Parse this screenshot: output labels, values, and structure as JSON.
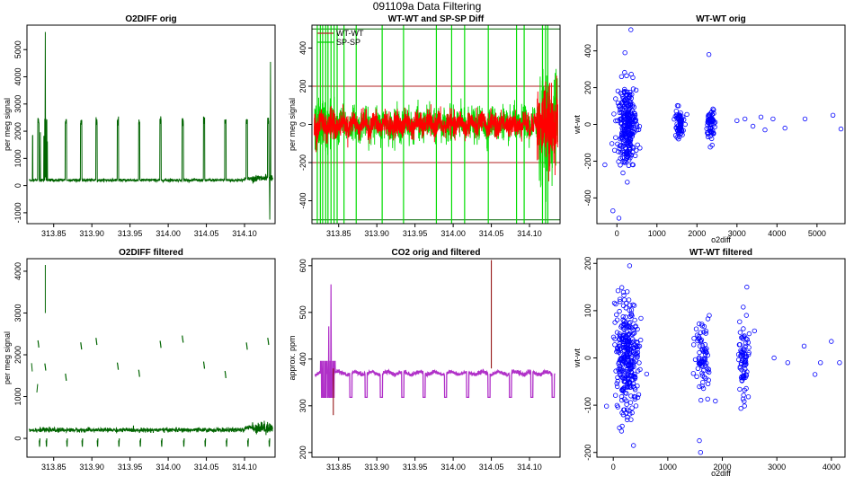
{
  "page_title": "091109a   Data Filtering",
  "chart_data": [
    {
      "id": "p1",
      "type": "line",
      "title": "O2DIFF orig",
      "xlabel": "",
      "ylabel": "per meg signal",
      "xlim": [
        313.815,
        314.14
      ],
      "ylim": [
        -1400,
        5900
      ],
      "xticks": [
        313.85,
        313.9,
        313.95,
        314.0,
        314.05,
        314.1
      ],
      "xtick_labels": [
        "313.85",
        "313.90",
        "313.95",
        "314.00",
        "314.05",
        "314.10"
      ],
      "yticks": [
        -1000,
        0,
        1000,
        2000,
        3000,
        4000,
        5000
      ],
      "ytick_labels": [
        "-1000",
        "0",
        "1000",
        "2000",
        "3000",
        "4000",
        "5000"
      ],
      "series": [
        {
          "name": "O2DIFF",
          "color": "#006400",
          "baseline": 200,
          "pulse_high": 2400,
          "spikes": [
            {
              "x": 313.839,
              "y": 5650
            },
            {
              "x": 314.134,
              "y": 4550
            },
            {
              "x": 314.133,
              "y": -1250
            }
          ]
        }
      ]
    },
    {
      "id": "p2",
      "type": "line",
      "title": "WT-WT and SP-SP Diff",
      "xlabel": "",
      "ylabel": "per meg signal",
      "xlim": [
        313.815,
        314.14
      ],
      "ylim": [
        -520,
        520
      ],
      "xticks": [
        313.85,
        313.9,
        313.95,
        314.0,
        314.05,
        314.1
      ],
      "xtick_labels": [
        "313.85",
        "313.90",
        "313.95",
        "314.00",
        "314.05",
        "314.10"
      ],
      "yticks": [
        -400,
        -200,
        0,
        200,
        400
      ],
      "ytick_labels": [
        "-400",
        "-200",
        "0",
        "200",
        "400"
      ],
      "hlines": [
        {
          "y": 200,
          "color": "#b22222"
        },
        {
          "y": -200,
          "color": "#b22222"
        },
        {
          "y": 500,
          "color": "#006400"
        },
        {
          "y": -500,
          "color": "#006400"
        }
      ],
      "legend": {
        "position": "top-left",
        "entries": [
          {
            "label": "WT-WT",
            "color": "#b22222"
          },
          {
            "label": "SP-SP",
            "color": "#00cc00"
          }
        ]
      },
      "series": [
        {
          "name": "SP-SP",
          "color": "#00dd00",
          "noise": 40
        },
        {
          "name": "WT-WT",
          "color": "#ff0000",
          "noise": 30
        }
      ]
    },
    {
      "id": "p3",
      "type": "scatter",
      "title": "WT-WT orig",
      "xlabel": "o2diff",
      "ylabel": "wt-wt",
      "xlim": [
        -500,
        5700
      ],
      "ylim": [
        -540,
        540
      ],
      "xticks": [
        0,
        1000,
        2000,
        3000,
        4000,
        5000
      ],
      "xtick_labels": [
        "0",
        "1000",
        "2000",
        "3000",
        "4000",
        "5000"
      ],
      "yticks": [
        -400,
        -200,
        0,
        200,
        400
      ],
      "ytick_labels": [
        "-400",
        "-200",
        "0",
        "200",
        "400"
      ],
      "series": [
        {
          "name": "points",
          "color": "#0000ff",
          "clusters": [
            {
              "cx": 250,
              "sx": 120,
              "sy": 110,
              "n": 280
            },
            {
              "cx": 1550,
              "sx": 60,
              "sy": 45,
              "n": 70
            },
            {
              "cx": 2350,
              "sx": 50,
              "sy": 45,
              "n": 60
            }
          ],
          "extra": [
            {
              "x": 3000,
              "y": 20
            },
            {
              "x": 3200,
              "y": 30
            },
            {
              "x": 3400,
              "y": -10
            },
            {
              "x": 3600,
              "y": 40
            },
            {
              "x": 3700,
              "y": -30
            },
            {
              "x": 3900,
              "y": 30
            },
            {
              "x": 4200,
              "y": -20
            },
            {
              "x": 4700,
              "y": 30
            },
            {
              "x": 5400,
              "y": 50
            },
            {
              "x": 5600,
              "y": -25
            },
            {
              "x": 350,
              "y": 515
            },
            {
              "x": 2300,
              "y": 380
            },
            {
              "x": -100,
              "y": -470
            },
            {
              "x": 50,
              "y": -510
            },
            {
              "x": -300,
              "y": -220
            },
            {
              "x": 200,
              "y": 390
            }
          ]
        }
      ]
    },
    {
      "id": "p4",
      "type": "line",
      "title": "O2DIFF filtered",
      "xlabel": "",
      "ylabel": "per meg signal",
      "xlim": [
        313.815,
        314.14
      ],
      "ylim": [
        -450,
        4300
      ],
      "xticks": [
        313.85,
        313.9,
        313.95,
        314.0,
        314.05,
        314.1
      ],
      "xtick_labels": [
        "313.85",
        "313.90",
        "313.95",
        "314.00",
        "314.05",
        "314.10"
      ],
      "yticks": [
        0,
        1000,
        2000,
        3000,
        4000
      ],
      "ytick_labels": [
        "0",
        "1000",
        "2000",
        "3000",
        "4000"
      ],
      "series": [
        {
          "name": "O2DIFF filtered",
          "color": "#006400",
          "baseline": 200,
          "spikes": [
            {
              "x": 313.839,
              "y": 4150
            }
          ]
        }
      ]
    },
    {
      "id": "p5",
      "type": "line",
      "title": "CO2 orig and filtered",
      "xlabel": "",
      "ylabel": "approx. ppm",
      "xlim": [
        313.815,
        314.14
      ],
      "ylim": [
        190,
        615
      ],
      "xticks": [
        313.85,
        313.9,
        313.95,
        314.0,
        314.05,
        314.1
      ],
      "xtick_labels": [
        "313.85",
        "313.90",
        "313.95",
        "314.00",
        "314.05",
        "314.10"
      ],
      "yticks": [
        200,
        300,
        400,
        500,
        600
      ],
      "ytick_labels": [
        "200",
        "300",
        "400",
        "500",
        "600"
      ],
      "series": [
        {
          "name": "CO2 orig",
          "color": "#8b0000",
          "spikes": [
            {
              "x": 314.05,
              "y": 612
            },
            {
              "x": 313.843,
              "y": 280
            }
          ]
        },
        {
          "name": "CO2 filtered",
          "color": "#b030c8",
          "baseline": 370,
          "pulse_low": 318,
          "spikes": [
            {
              "x": 313.84,
              "y": 560
            },
            {
              "x": 313.837,
              "y": 470
            }
          ]
        }
      ]
    },
    {
      "id": "p6",
      "type": "scatter",
      "title": "WT-WT filtered",
      "xlabel": "o2diff",
      "ylabel": "wt-wt",
      "xlim": [
        -300,
        4250
      ],
      "ylim": [
        -210,
        210
      ],
      "xticks": [
        0,
        1000,
        2000,
        3000,
        4000
      ],
      "xtick_labels": [
        "0",
        "1000",
        "2000",
        "3000",
        "4000"
      ],
      "yticks": [
        -200,
        -100,
        0,
        100,
        200
      ],
      "ytick_labels": [
        "-200",
        "-100",
        "0",
        "100",
        "200"
      ],
      "series": [
        {
          "name": "points",
          "color": "#0000ff",
          "clusters": [
            {
              "cx": 250,
              "sx": 110,
              "sy": 60,
              "n": 320
            },
            {
              "cx": 1650,
              "sx": 70,
              "sy": 40,
              "n": 80
            },
            {
              "cx": 2400,
              "sx": 50,
              "sy": 45,
              "n": 80
            }
          ],
          "extra": [
            {
              "x": 2950,
              "y": 0
            },
            {
              "x": 3200,
              "y": -10
            },
            {
              "x": 3500,
              "y": 25
            },
            {
              "x": 3700,
              "y": -35
            },
            {
              "x": 3800,
              "y": -10
            },
            {
              "x": 4000,
              "y": 35
            },
            {
              "x": 4150,
              "y": -10
            },
            {
              "x": 300,
              "y": 195
            },
            {
              "x": 1600,
              "y": -200
            },
            {
              "x": 1580,
              "y": -175
            },
            {
              "x": 2450,
              "y": 150
            }
          ]
        }
      ]
    }
  ]
}
